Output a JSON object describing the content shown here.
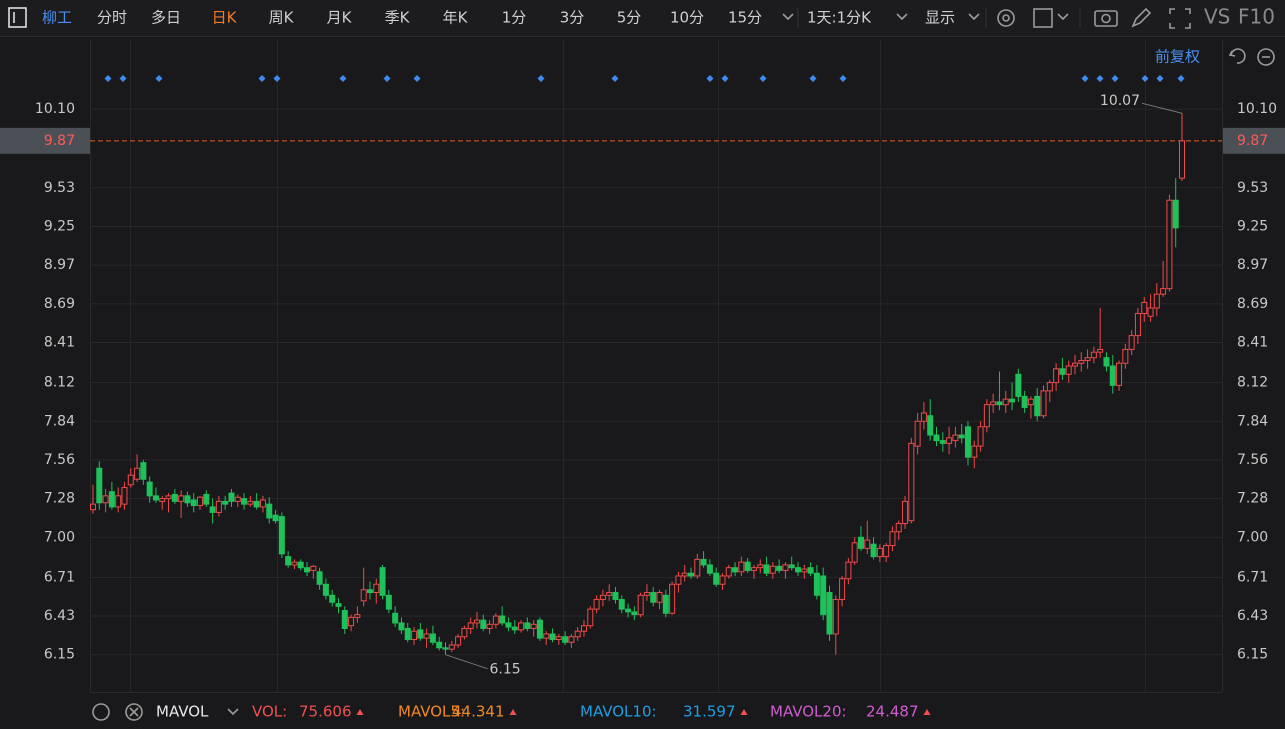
{
  "toolbar": {
    "stock": "柳工",
    "periods": [
      "分时",
      "多日",
      "日K",
      "周K",
      "月K",
      "季K",
      "年K",
      "1分",
      "3分",
      "5分",
      "10分",
      "15分"
    ],
    "range": "1天:1分K",
    "display": "显示",
    "vs": "VS",
    "f10": "F10",
    "adjust": "前复权"
  },
  "chart_data": {
    "type": "candlestick",
    "up_color": "#f04a4a",
    "down_color": "#1ec15a",
    "ylim": [
      5.88,
      10.6
    ],
    "yticks": [
      {
        "value": 10.1,
        "label": "10.10"
      },
      9.53,
      9.25,
      8.97,
      8.69,
      8.41,
      8.12,
      7.84,
      7.56,
      7.28,
      {
        "value": 7,
        "label": "7.00"
      },
      6.71,
      6.43,
      6.15
    ],
    "current_price": 9.87,
    "annotations": {
      "high": 10.07,
      "low": 6.15
    },
    "candles": [
      [
        7.2,
        7.38,
        7.17,
        7.24
      ],
      [
        7.5,
        7.55,
        7.2,
        7.25
      ],
      [
        7.25,
        7.35,
        7.18,
        7.3
      ],
      [
        7.33,
        7.4,
        7.2,
        7.22
      ],
      [
        7.22,
        7.36,
        7.18,
        7.3
      ],
      [
        7.24,
        7.4,
        7.2,
        7.36
      ],
      [
        7.38,
        7.5,
        7.36,
        7.45
      ],
      [
        7.42,
        7.6,
        7.4,
        7.5
      ],
      [
        7.54,
        7.56,
        7.38,
        7.42
      ],
      [
        7.4,
        7.44,
        7.25,
        7.3
      ],
      [
        7.3,
        7.36,
        7.25,
        7.27
      ],
      [
        7.26,
        7.3,
        7.2,
        7.28
      ],
      [
        7.28,
        7.32,
        7.18,
        7.3
      ],
      [
        7.31,
        7.35,
        7.24,
        7.26
      ],
      [
        7.26,
        7.34,
        7.14,
        7.3
      ],
      [
        7.3,
        7.33,
        7.22,
        7.25
      ],
      [
        7.27,
        7.32,
        7.18,
        7.23
      ],
      [
        7.23,
        7.3,
        7.2,
        7.29
      ],
      [
        7.31,
        7.34,
        7.22,
        7.24
      ],
      [
        7.22,
        7.28,
        7.1,
        7.18
      ],
      [
        7.18,
        7.3,
        7.15,
        7.26
      ],
      [
        7.26,
        7.3,
        7.2,
        7.24
      ],
      [
        7.32,
        7.35,
        7.22,
        7.26
      ],
      [
        7.26,
        7.31,
        7.22,
        7.29
      ],
      [
        7.28,
        7.32,
        7.2,
        7.24
      ],
      [
        7.24,
        7.3,
        7.22,
        7.26
      ],
      [
        7.26,
        7.32,
        7.2,
        7.22
      ],
      [
        7.22,
        7.3,
        7.18,
        7.27
      ],
      [
        7.24,
        7.29,
        7.1,
        7.14
      ],
      [
        7.16,
        7.2,
        7.1,
        7.12
      ],
      [
        7.15,
        7.18,
        6.85,
        6.88
      ],
      [
        6.86,
        6.9,
        6.78,
        6.8
      ],
      [
        6.8,
        6.84,
        6.77,
        6.82
      ],
      [
        6.82,
        6.84,
        6.76,
        6.78
      ],
      [
        6.78,
        6.82,
        6.72,
        6.75
      ],
      [
        6.76,
        6.8,
        6.7,
        6.79
      ],
      [
        6.75,
        6.78,
        6.62,
        6.66
      ],
      [
        6.66,
        6.7,
        6.55,
        6.58
      ],
      [
        6.58,
        6.62,
        6.5,
        6.53
      ],
      [
        6.52,
        6.56,
        6.45,
        6.5
      ],
      [
        6.47,
        6.5,
        6.3,
        6.34
      ],
      [
        6.36,
        6.44,
        6.32,
        6.42
      ],
      [
        6.42,
        6.5,
        6.38,
        6.44
      ],
      [
        6.54,
        6.78,
        6.5,
        6.62
      ],
      [
        6.62,
        6.68,
        6.55,
        6.6
      ],
      [
        6.6,
        6.7,
        6.52,
        6.66
      ],
      [
        6.78,
        6.8,
        6.55,
        6.58
      ],
      [
        6.58,
        6.62,
        6.45,
        6.48
      ],
      [
        6.45,
        6.5,
        6.35,
        6.38
      ],
      [
        6.38,
        6.42,
        6.3,
        6.33
      ],
      [
        6.34,
        6.38,
        6.24,
        6.26
      ],
      [
        6.26,
        6.35,
        6.22,
        6.32
      ],
      [
        6.33,
        6.38,
        6.25,
        6.27
      ],
      [
        6.27,
        6.34,
        6.2,
        6.3
      ],
      [
        6.3,
        6.36,
        6.22,
        6.24
      ],
      [
        6.24,
        6.28,
        6.18,
        6.2
      ],
      [
        6.2,
        6.24,
        6.15,
        6.19
      ],
      [
        6.19,
        6.25,
        6.17,
        6.22
      ],
      [
        6.22,
        6.3,
        6.2,
        6.28
      ],
      [
        6.28,
        6.36,
        6.26,
        6.34
      ],
      [
        6.34,
        6.42,
        6.3,
        6.38
      ],
      [
        6.38,
        6.46,
        6.34,
        6.4
      ],
      [
        6.4,
        6.44,
        6.32,
        6.34
      ],
      [
        6.34,
        6.4,
        6.3,
        6.37
      ],
      [
        6.37,
        6.45,
        6.34,
        6.43
      ],
      [
        6.43,
        6.5,
        6.36,
        6.38
      ],
      [
        6.38,
        6.42,
        6.32,
        6.35
      ],
      [
        6.35,
        6.4,
        6.3,
        6.33
      ],
      [
        6.33,
        6.4,
        6.31,
        6.38
      ],
      [
        6.38,
        6.42,
        6.32,
        6.34
      ],
      [
        6.34,
        6.4,
        6.28,
        6.37
      ],
      [
        6.4,
        6.42,
        6.25,
        6.27
      ],
      [
        6.27,
        6.32,
        6.22,
        6.3
      ],
      [
        6.3,
        6.34,
        6.24,
        6.26
      ],
      [
        6.26,
        6.3,
        6.22,
        6.28
      ],
      [
        6.28,
        6.32,
        6.22,
        6.24
      ],
      [
        6.24,
        6.3,
        6.2,
        6.28
      ],
      [
        6.28,
        6.35,
        6.25,
        6.32
      ],
      [
        6.32,
        6.4,
        6.28,
        6.36
      ],
      [
        6.36,
        6.5,
        6.34,
        6.48
      ],
      [
        6.48,
        6.58,
        6.45,
        6.55
      ],
      [
        6.55,
        6.62,
        6.5,
        6.58
      ],
      [
        6.58,
        6.66,
        6.54,
        6.6
      ],
      [
        6.6,
        6.64,
        6.52,
        6.55
      ],
      [
        6.55,
        6.58,
        6.45,
        6.48
      ],
      [
        6.48,
        6.52,
        6.42,
        6.46
      ],
      [
        6.46,
        6.5,
        6.4,
        6.44
      ],
      [
        6.44,
        6.6,
        6.42,
        6.58
      ],
      [
        6.58,
        6.66,
        6.54,
        6.6
      ],
      [
        6.6,
        6.64,
        6.5,
        6.53
      ],
      [
        6.53,
        6.62,
        6.48,
        6.6
      ],
      [
        6.58,
        6.62,
        6.42,
        6.45
      ],
      [
        6.45,
        6.68,
        6.44,
        6.66
      ],
      [
        6.66,
        6.75,
        6.6,
        6.72
      ],
      [
        6.72,
        6.8,
        6.68,
        6.74
      ],
      [
        6.74,
        6.78,
        6.7,
        6.72
      ],
      [
        6.72,
        6.88,
        6.7,
        6.84
      ],
      [
        6.84,
        6.9,
        6.78,
        6.8
      ],
      [
        6.8,
        6.84,
        6.72,
        6.74
      ],
      [
        6.74,
        6.78,
        6.64,
        6.66
      ],
      [
        6.66,
        6.74,
        6.62,
        6.72
      ],
      [
        6.72,
        6.8,
        6.7,
        6.78
      ],
      [
        6.78,
        6.82,
        6.72,
        6.75
      ],
      [
        6.75,
        6.86,
        6.72,
        6.82
      ],
      [
        6.82,
        6.85,
        6.74,
        6.76
      ],
      [
        6.76,
        6.8,
        6.7,
        6.78
      ],
      [
        6.78,
        6.84,
        6.74,
        6.8
      ],
      [
        6.8,
        6.86,
        6.72,
        6.74
      ],
      [
        6.74,
        6.82,
        6.7,
        6.79
      ],
      [
        6.79,
        6.84,
        6.74,
        6.76
      ],
      [
        6.76,
        6.82,
        6.7,
        6.8
      ],
      [
        6.8,
        6.86,
        6.76,
        6.78
      ],
      [
        6.78,
        6.82,
        6.72,
        6.75
      ],
      [
        6.75,
        6.8,
        6.7,
        6.77
      ],
      [
        6.78,
        6.82,
        6.72,
        6.74
      ],
      [
        6.74,
        6.8,
        6.55,
        6.58
      ],
      [
        6.72,
        6.78,
        6.4,
        6.44
      ],
      [
        6.6,
        6.65,
        6.25,
        6.3
      ],
      [
        6.3,
        6.58,
        6.15,
        6.55
      ],
      [
        6.55,
        6.72,
        6.5,
        6.7
      ],
      [
        6.7,
        6.85,
        6.66,
        6.82
      ],
      [
        6.82,
        7.0,
        6.8,
        6.96
      ],
      [
        7.0,
        7.08,
        6.9,
        6.92
      ],
      [
        6.92,
        7.12,
        6.88,
        6.98
      ],
      [
        6.95,
        7.0,
        6.84,
        6.86
      ],
      [
        6.86,
        6.95,
        6.82,
        6.92
      ],
      [
        6.86,
        6.96,
        6.82,
        6.94
      ],
      [
        6.94,
        7.08,
        6.9,
        7.04
      ],
      [
        7.04,
        7.12,
        6.98,
        7.1
      ],
      [
        7.1,
        7.3,
        7.06,
        7.26
      ],
      [
        7.12,
        7.72,
        7.1,
        7.68
      ],
      [
        7.66,
        7.9,
        7.6,
        7.84
      ],
      [
        7.84,
        7.98,
        7.78,
        7.9
      ],
      [
        7.88,
        8.0,
        7.7,
        7.74
      ],
      [
        7.74,
        7.8,
        7.66,
        7.7
      ],
      [
        7.7,
        7.76,
        7.62,
        7.68
      ],
      [
        7.68,
        7.8,
        7.6,
        7.72
      ],
      [
        7.7,
        7.8,
        7.65,
        7.74
      ],
      [
        7.74,
        7.82,
        7.68,
        7.72
      ],
      [
        7.8,
        7.84,
        7.52,
        7.58
      ],
      [
        7.58,
        7.7,
        7.5,
        7.66
      ],
      [
        7.66,
        7.84,
        7.62,
        7.8
      ],
      [
        7.8,
        8.0,
        7.76,
        7.96
      ],
      [
        7.96,
        8.04,
        7.9,
        7.98
      ],
      [
        7.98,
        8.2,
        7.92,
        7.96
      ],
      [
        7.96,
        8.06,
        7.9,
        8.0
      ],
      [
        8.0,
        8.12,
        7.92,
        7.98
      ],
      [
        8.18,
        8.22,
        7.98,
        8.02
      ],
      [
        8.02,
        8.06,
        7.9,
        7.94
      ],
      [
        7.96,
        8.02,
        7.86,
        8.0
      ],
      [
        8.02,
        8.08,
        7.84,
        7.88
      ],
      [
        7.88,
        8.1,
        7.86,
        8.06
      ],
      [
        8.06,
        8.14,
        7.98,
        8.12
      ],
      [
        8.12,
        8.26,
        8.06,
        8.22
      ],
      [
        8.22,
        8.3,
        8.14,
        8.18
      ],
      [
        8.18,
        8.28,
        8.12,
        8.24
      ],
      [
        8.24,
        8.32,
        8.18,
        8.26
      ],
      [
        8.26,
        8.34,
        8.2,
        8.28
      ],
      [
        8.28,
        8.36,
        8.22,
        8.3
      ],
      [
        8.3,
        8.38,
        8.26,
        8.34
      ],
      [
        8.34,
        8.66,
        8.3,
        8.36
      ],
      [
        8.3,
        8.34,
        8.2,
        8.24
      ],
      [
        8.24,
        8.32,
        8.04,
        8.1
      ],
      [
        8.1,
        8.28,
        8.06,
        8.26
      ],
      [
        8.26,
        8.4,
        8.22,
        8.36
      ],
      [
        8.36,
        8.5,
        8.32,
        8.46
      ],
      [
        8.46,
        8.66,
        8.4,
        8.62
      ],
      [
        8.62,
        8.74,
        8.56,
        8.7
      ],
      [
        8.6,
        8.76,
        8.56,
        8.66
      ],
      [
        8.66,
        8.84,
        8.6,
        8.76
      ],
      [
        8.76,
        9.0,
        8.74,
        8.8
      ],
      [
        8.8,
        9.48,
        8.78,
        9.44
      ],
      [
        9.44,
        9.6,
        9.1,
        9.24
      ],
      [
        9.6,
        10.07,
        9.58,
        9.87
      ]
    ]
  },
  "indicator": {
    "name": "MAVOL",
    "items": [
      {
        "name": "VOL:",
        "value": 75.606,
        "color": "#f0504f"
      },
      {
        "name": "MAVOL5:",
        "value": 44.341,
        "color": "#f08a24"
      },
      {
        "name": "MAVOL10:",
        "value": 31.597,
        "color": "#1f9ee0"
      },
      {
        "name": "MAVOL20:",
        "value": 24.487,
        "color": "#d05cd0"
      }
    ]
  }
}
